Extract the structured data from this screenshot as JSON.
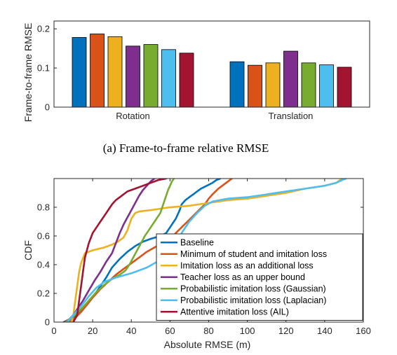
{
  "captions": {
    "a": "(a) Frame-to-frame relative RMSE"
  },
  "chart_data": [
    {
      "type": "bar",
      "ylabel": "Frame-to-frame RMSE",
      "xlabel": "",
      "ylim": [
        0,
        0.22
      ],
      "yticks": [
        0,
        0.1,
        0.2
      ],
      "ytick_labels": [
        "0",
        "0.1",
        "0.2"
      ],
      "categories": [
        "Rotation",
        "Translation"
      ],
      "grid": false,
      "series": [
        {
          "color": "#0072BD",
          "values": [
            0.178,
            0.116
          ]
        },
        {
          "color": "#D95319",
          "values": [
            0.187,
            0.107
          ]
        },
        {
          "color": "#EDB120",
          "values": [
            0.18,
            0.113
          ]
        },
        {
          "color": "#7E2F8E",
          "values": [
            0.156,
            0.143
          ]
        },
        {
          "color": "#77AC30",
          "values": [
            0.16,
            0.113
          ]
        },
        {
          "color": "#4DBEEE",
          "values": [
            0.147,
            0.108
          ]
        },
        {
          "color": "#A2142F",
          "values": [
            0.138,
            0.102
          ]
        }
      ]
    },
    {
      "type": "line",
      "xlabel": "Absolute RMSE (m)",
      "ylabel": "CDF",
      "xlim": [
        0,
        160
      ],
      "ylim": [
        0,
        1
      ],
      "xticks": [
        0,
        20,
        40,
        60,
        80,
        100,
        120,
        140,
        160
      ],
      "xtick_labels": [
        "0",
        "20",
        "40",
        "60",
        "80",
        "100",
        "120",
        "140",
        "160"
      ],
      "yticks": [
        0,
        0.2,
        0.4,
        0.6,
        0.8
      ],
      "ytick_labels": [
        "0",
        "0.2",
        "0.4",
        "0.6",
        "0.8"
      ],
      "grid": false,
      "legend_position": "bottom-right",
      "series": [
        {
          "name": "Baseline",
          "color": "#0072BD",
          "x": [
            7,
            9,
            12,
            15,
            18,
            21,
            24,
            27,
            30,
            34,
            38,
            42,
            46,
            50,
            55,
            58,
            60,
            63,
            65,
            66,
            68,
            70,
            72,
            74,
            76,
            79,
            82,
            84,
            86
          ],
          "y": [
            0,
            0.02,
            0.05,
            0.09,
            0.14,
            0.19,
            0.25,
            0.31,
            0.38,
            0.44,
            0.49,
            0.53,
            0.56,
            0.58,
            0.6,
            0.62,
            0.66,
            0.72,
            0.78,
            0.82,
            0.85,
            0.87,
            0.89,
            0.91,
            0.93,
            0.95,
            0.97,
            0.99,
            1
          ]
        },
        {
          "name": "Minimum of student and imitation loss",
          "color": "#D95319",
          "x": [
            8,
            11,
            14,
            17,
            20,
            24,
            28,
            32,
            36,
            40,
            44,
            48,
            52,
            56,
            60,
            63,
            66,
            69,
            72,
            75,
            78,
            80,
            82,
            85,
            88,
            90,
            92
          ],
          "y": [
            0,
            0.03,
            0.07,
            0.12,
            0.17,
            0.23,
            0.28,
            0.33,
            0.37,
            0.41,
            0.45,
            0.49,
            0.52,
            0.55,
            0.58,
            0.62,
            0.66,
            0.7,
            0.74,
            0.78,
            0.82,
            0.86,
            0.89,
            0.93,
            0.96,
            0.98,
            1
          ]
        },
        {
          "name": "Imitation loss as an additional loss",
          "color": "#EDB120",
          "x": [
            9,
            10,
            11,
            12,
            13,
            14,
            16,
            20,
            26,
            30,
            33,
            36,
            38,
            40,
            42,
            44,
            50,
            60,
            70,
            80,
            90,
            100,
            110,
            120,
            130,
            140,
            146,
            148,
            150
          ],
          "y": [
            0,
            0.05,
            0.15,
            0.25,
            0.35,
            0.41,
            0.48,
            0.5,
            0.52,
            0.54,
            0.56,
            0.59,
            0.64,
            0.72,
            0.76,
            0.77,
            0.78,
            0.8,
            0.81,
            0.83,
            0.85,
            0.86,
            0.88,
            0.9,
            0.93,
            0.95,
            0.97,
            0.99,
            1
          ]
        },
        {
          "name": "Teacher loss as an upper bound",
          "color": "#7E2F8E",
          "x": [
            5,
            8,
            10,
            12,
            15,
            18,
            21,
            24,
            27,
            30,
            32,
            34,
            36,
            38,
            40,
            42,
            44,
            46,
            48,
            50,
            52
          ],
          "y": [
            0,
            0.02,
            0.05,
            0.09,
            0.15,
            0.22,
            0.29,
            0.35,
            0.42,
            0.48,
            0.55,
            0.62,
            0.68,
            0.73,
            0.78,
            0.83,
            0.88,
            0.92,
            0.95,
            0.98,
            1
          ]
        },
        {
          "name": "Probabilistic imitation loss (Gaussian)",
          "color": "#77AC30",
          "x": [
            6,
            10,
            14,
            18,
            22,
            26,
            30,
            34,
            37,
            39,
            41,
            43,
            45,
            47,
            49,
            51,
            53,
            55,
            56,
            57,
            58,
            59,
            60,
            61,
            62
          ],
          "y": [
            0,
            0.04,
            0.09,
            0.15,
            0.21,
            0.26,
            0.3,
            0.33,
            0.36,
            0.4,
            0.45,
            0.5,
            0.55,
            0.6,
            0.64,
            0.68,
            0.72,
            0.76,
            0.8,
            0.84,
            0.88,
            0.92,
            0.95,
            0.98,
            1
          ]
        },
        {
          "name": "Probabilistic imitation loss (Laplacian)",
          "color": "#4DBEEE",
          "x": [
            7,
            10,
            14,
            18,
            22,
            26,
            32,
            40,
            48,
            56,
            62,
            66,
            70,
            74,
            78,
            82,
            90,
            100,
            110,
            120,
            130,
            140,
            146,
            149,
            151
          ],
          "y": [
            0,
            0.05,
            0.11,
            0.18,
            0.24,
            0.28,
            0.31,
            0.34,
            0.38,
            0.44,
            0.52,
            0.62,
            0.7,
            0.76,
            0.81,
            0.84,
            0.86,
            0.87,
            0.89,
            0.91,
            0.93,
            0.95,
            0.97,
            0.99,
            1
          ]
        },
        {
          "name": "Attentive imitation loss (AIL)",
          "color": "#A2142F",
          "x": [
            10,
            12,
            13,
            14,
            15,
            16,
            18,
            20,
            22,
            24,
            26,
            28,
            30,
            32,
            35,
            38,
            42,
            46,
            50,
            54,
            58
          ],
          "y": [
            0,
            0.05,
            0.15,
            0.25,
            0.35,
            0.45,
            0.55,
            0.62,
            0.66,
            0.7,
            0.74,
            0.78,
            0.82,
            0.85,
            0.88,
            0.91,
            0.93,
            0.95,
            0.97,
            0.99,
            1
          ]
        }
      ]
    }
  ]
}
